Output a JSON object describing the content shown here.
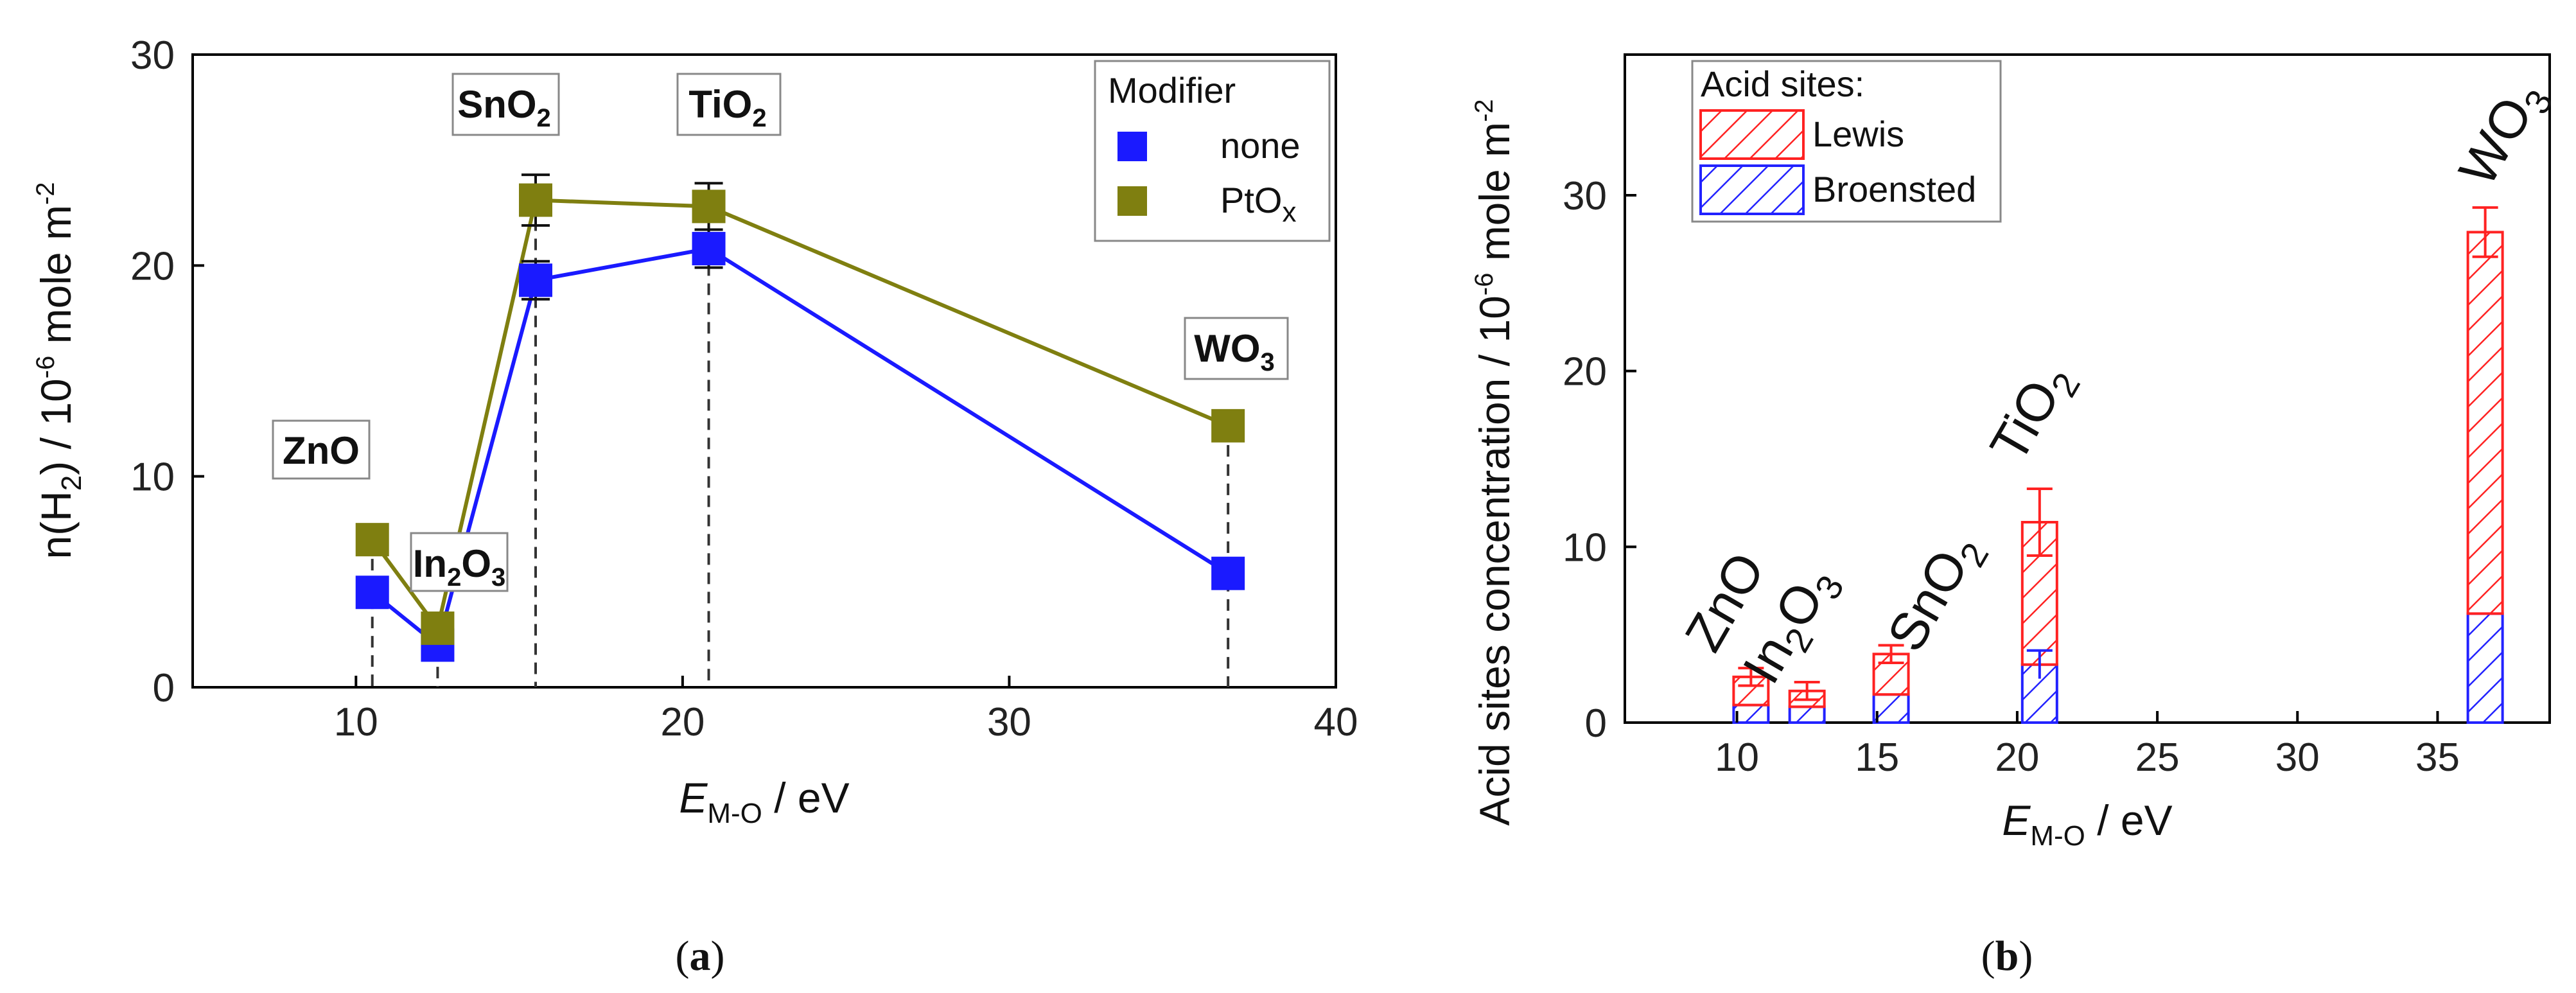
{
  "chart_data": [
    {
      "type": "line",
      "panel": "a",
      "panel_label": "a",
      "xlabel": "E",
      "xlabel_sub": "M-O",
      "xlabel_unit": " / eV",
      "ylabel_prefix": "n(H",
      "ylabel_sub": "2",
      "ylabel_mid": ") / 10",
      "ylabel_sup": "-6",
      "ylabel_unit": " mole m",
      "ylabel_sup2": "-2",
      "xlim": [
        5,
        40
      ],
      "ylim": [
        0,
        30
      ],
      "xticks": [
        10,
        20,
        30,
        40
      ],
      "xtick_labels": [
        "10",
        "20",
        "30",
        "40"
      ],
      "yticks": [
        0,
        10,
        20,
        30
      ],
      "ytick_labels": [
        "0",
        "10",
        "20",
        "30"
      ],
      "legend": {
        "title": "Modifier",
        "entries": [
          {
            "label": "none",
            "sub": "",
            "color": "#1a1aff"
          },
          {
            "label": "PtO",
            "sub": "x",
            "color": "#7f7f10"
          }
        ]
      },
      "oxide_positions": [
        10.5,
        12.5,
        15.5,
        20.8,
        36.7
      ],
      "oxides": [
        {
          "base": "ZnO",
          "sub": "",
          "tail": ""
        },
        {
          "base": "In",
          "sub": "2",
          "tail": "O",
          "sub2": "3"
        },
        {
          "base": "SnO",
          "sub": "2",
          "tail": ""
        },
        {
          "base": "TiO",
          "sub": "2",
          "tail": ""
        },
        {
          "base": "WO",
          "sub": "3",
          "tail": ""
        }
      ],
      "series": [
        {
          "name": "none",
          "color": "#1a1aff",
          "x": [
            10.5,
            12.5,
            15.5,
            20.8,
            36.7
          ],
          "y": [
            4.5,
            2.0,
            19.3,
            20.8,
            5.4
          ],
          "err": [
            0.6,
            0.6,
            0.9,
            0.9,
            0.5
          ]
        },
        {
          "name": "PtOx",
          "color": "#7f7f10",
          "x": [
            10.5,
            12.5,
            15.5,
            20.8,
            36.7
          ],
          "y": [
            7.0,
            2.8,
            23.1,
            22.8,
            12.4
          ],
          "err": [
            0.6,
            0.4,
            1.2,
            1.1,
            0.5
          ]
        }
      ]
    },
    {
      "type": "bar",
      "panel": "b",
      "panel_label": "b",
      "stacked": true,
      "xlabel": "E",
      "xlabel_sub": "M-O",
      "xlabel_unit": " / eV",
      "ylabel_text": "Acid sites concentration / 10",
      "ylabel_sup": "-6",
      "ylabel_unit": " mole m",
      "ylabel_sup2": "-2",
      "xlim": [
        6,
        39
      ],
      "ylim": [
        0,
        38
      ],
      "xticks": [
        10,
        15,
        20,
        25,
        30,
        35
      ],
      "xtick_labels": [
        "10",
        "15",
        "20",
        "25",
        "30",
        "35"
      ],
      "yticks": [
        0,
        10,
        20,
        30
      ],
      "ytick_labels": [
        "0",
        "10",
        "20",
        "30"
      ],
      "legend": {
        "title": "Acid sites:",
        "entries": [
          {
            "label": "Lewis",
            "color": "#ff2222"
          },
          {
            "label": "Broensted",
            "color": "#2222ff"
          }
        ]
      },
      "categories_x": [
        10.5,
        12.5,
        15.5,
        20.8,
        36.7
      ],
      "oxides": [
        {
          "base": "ZnO",
          "sub": "",
          "tail": ""
        },
        {
          "base": "In",
          "sub": "2",
          "tail": "O",
          "sub2": "3"
        },
        {
          "base": "SnO",
          "sub": "2",
          "tail": ""
        },
        {
          "base": "TiO",
          "sub": "2",
          "tail": ""
        },
        {
          "base": "WO",
          "sub": "3",
          "tail": ""
        }
      ],
      "series": [
        {
          "name": "Broensted",
          "color": "#2222ff",
          "values": [
            1.0,
            0.9,
            1.6,
            3.3,
            6.2
          ],
          "err": [
            0,
            0,
            0,
            0.8,
            0
          ]
        },
        {
          "name": "Lewis",
          "color": "#ff2222",
          "values": [
            1.6,
            0.9,
            2.3,
            8.1,
            21.7
          ],
          "err": [
            0.5,
            0.5,
            0.5,
            1.9,
            1.4
          ]
        }
      ]
    }
  ]
}
